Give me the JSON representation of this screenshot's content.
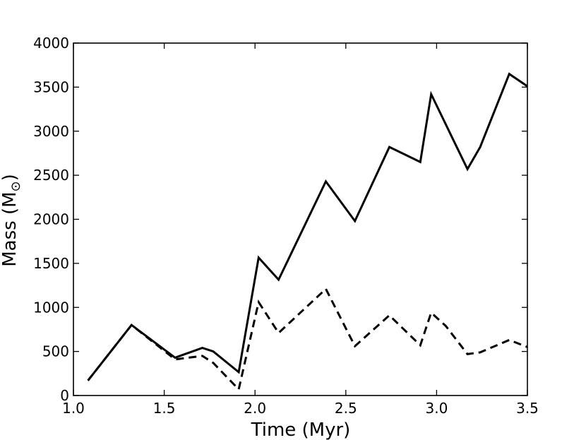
{
  "chart_data": {
    "type": "line",
    "xlabel": "Time (Myr)",
    "ylabel": {
      "prefix": "Mass (M",
      "subscript": "⊙",
      "suffix": ")"
    },
    "xlim": [
      1.0,
      3.5
    ],
    "ylim": [
      0,
      4000
    ],
    "x_ticks": [
      "1.0",
      "1.5",
      "2.0",
      "2.5",
      "3.0",
      "3.5"
    ],
    "y_ticks": [
      "0",
      "500",
      "1000",
      "1500",
      "2000",
      "2500",
      "3000",
      "3500",
      "4000"
    ],
    "grid": false,
    "series": [
      {
        "style": "solid",
        "color": "#000000",
        "x": [
          1.08,
          1.32,
          1.56,
          1.71,
          1.77,
          1.91,
          2.02,
          2.13,
          2.39,
          2.55,
          2.74,
          2.91,
          2.97,
          3.17,
          3.24,
          3.4,
          3.5
        ],
        "y": [
          170,
          800,
          430,
          540,
          500,
          265,
          1565,
          1315,
          2430,
          1980,
          2820,
          2650,
          3420,
          2570,
          2820,
          3650,
          3510
        ]
      },
      {
        "style": "dashed",
        "color": "#000000",
        "x": [
          1.08,
          1.32,
          1.56,
          1.71,
          1.77,
          1.91,
          2.02,
          2.13,
          2.39,
          2.55,
          2.74,
          2.91,
          2.97,
          3.05,
          3.17,
          3.24,
          3.4,
          3.5
        ],
        "y": [
          170,
          800,
          410,
          450,
          370,
          70,
          1060,
          710,
          1210,
          560,
          910,
          570,
          940,
          790,
          470,
          490,
          630,
          550
        ]
      }
    ]
  }
}
